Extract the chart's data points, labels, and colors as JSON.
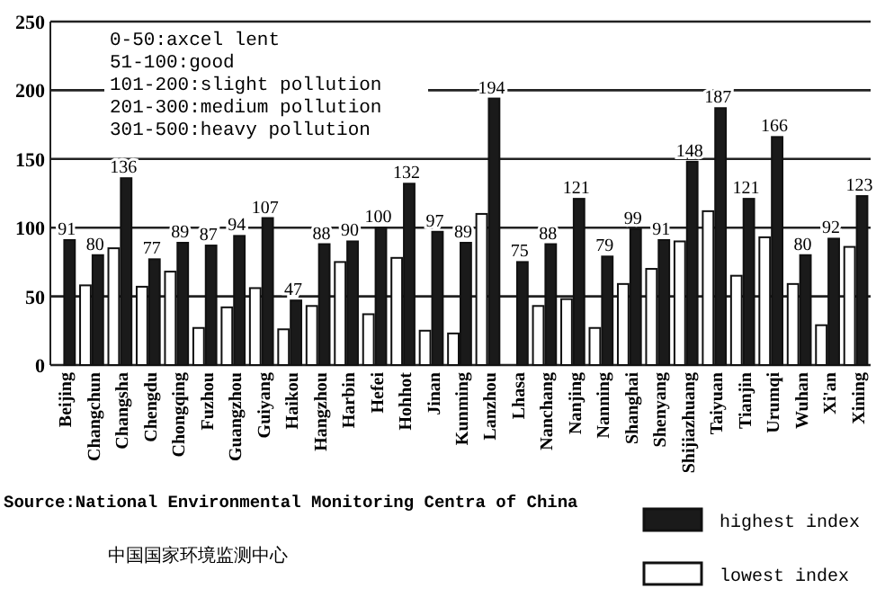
{
  "chart_data": {
    "type": "bar",
    "categories": [
      "Beijing",
      "Changchun",
      "Changsha",
      "Chengdu",
      "Chongqing",
      "Fuzhou",
      "Guangzhou",
      "Guiyang",
      "Haikou",
      "Hangzhou",
      "Harbin",
      "Hefei",
      "Hohhot",
      "Jinan",
      "Kunming",
      "Lanzhou",
      "Lhasa",
      "Nanchang",
      "Nanjing",
      "Nanning",
      "Shanghai",
      "Shenyang",
      "Shijiazhuang",
      "Taiyuan",
      "Tianjin",
      "Urumqi",
      "Wuhan",
      "Xi'an",
      "Xining"
    ],
    "series": [
      {
        "name": "lowest index",
        "color": "#ffffff",
        "values": [
          null,
          58,
          85,
          57,
          68,
          27,
          42,
          56,
          26,
          43,
          75,
          37,
          78,
          25,
          23,
          110,
          null,
          43,
          48,
          27,
          59,
          70,
          90,
          112,
          65,
          93,
          59,
          29,
          86
        ]
      },
      {
        "name": "highest index",
        "color": "#1a1a1a",
        "values": [
          91,
          80,
          136,
          77,
          89,
          87,
          94,
          107,
          47,
          88,
          90,
          100,
          132,
          97,
          89,
          194,
          75,
          88,
          121,
          79,
          99,
          91,
          148,
          187,
          121,
          166,
          80,
          92,
          123
        ],
        "value_labels": [
          "91",
          "80",
          "136",
          "77",
          "89",
          "87",
          "94",
          "107",
          "47",
          "88",
          "90",
          "100",
          "132",
          "97",
          "89",
          "194",
          "75",
          "88",
          "121",
          "79",
          "99",
          "91",
          "148",
          "187",
          "121",
          "166",
          "80",
          "92",
          "123"
        ]
      }
    ],
    "ylim": [
      0,
      250
    ],
    "yticks": [
      0,
      50,
      100,
      150,
      200,
      250
    ],
    "grid": "y",
    "legend": "bottom right",
    "annotations": [
      "0-50:axcel lent",
      "51-100:good",
      "101-200:slight pollution",
      "201-300:medium pollution",
      "301-500:heavy pollution",
      "Source:National Environmental Monitoring Centra of China",
      "中国国家环境监测中心"
    ]
  }
}
